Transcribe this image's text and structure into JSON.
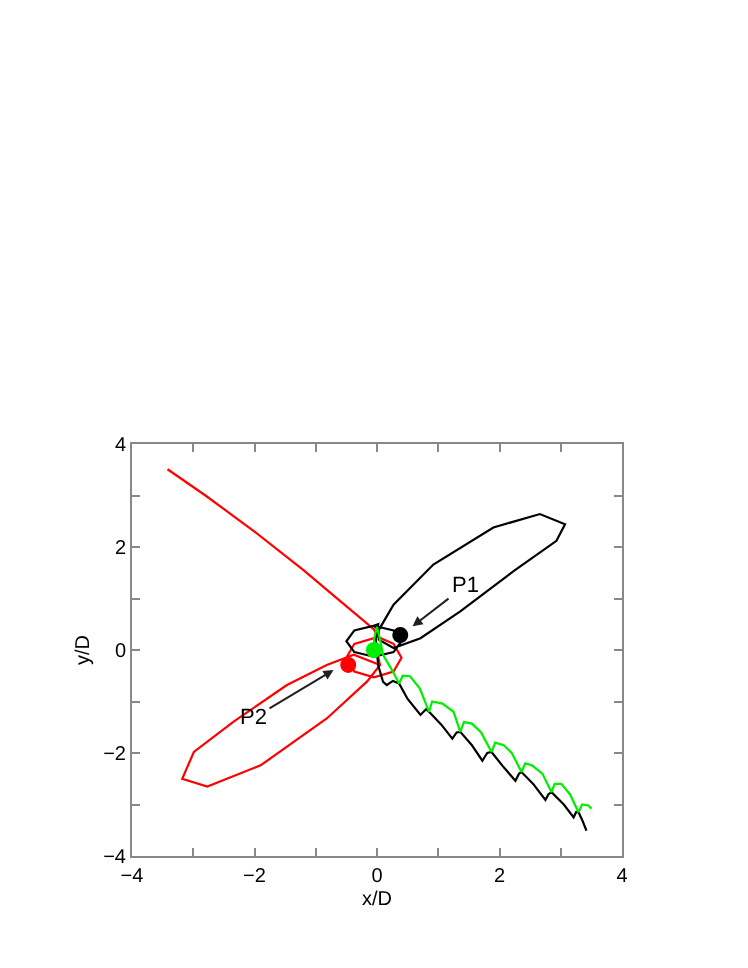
{
  "chart_data": {
    "type": "line",
    "xlabel": "x/D",
    "ylabel": "y/D",
    "xlim": [
      -4,
      4
    ],
    "ylim": [
      -4,
      4
    ],
    "xticks": [
      -4,
      {
        "value": -3,
        "label": null
      },
      -2,
      {
        "value": -1,
        "label": null
      },
      0,
      {
        "value": 1,
        "label": null
      },
      2,
      {
        "value": 3,
        "label": null
      },
      4
    ],
    "yticks": [
      -4,
      {
        "value": -3,
        "label": null
      },
      -2,
      {
        "value": -1,
        "label": null
      },
      0,
      {
        "value": 1,
        "label": null
      },
      2,
      {
        "value": 3,
        "label": null
      },
      4
    ],
    "line_style": "solid",
    "series": [
      {
        "color": "#ff0000",
        "x": [
          -3.42,
          -2.8,
          -2.0,
          -1.2,
          -0.6,
          -0.2,
          -0.05,
          0.02,
          0.27,
          0.4,
          0.27,
          -0.05,
          -0.37,
          -0.5,
          -0.37,
          -0.05,
          0.05,
          -0.16,
          -0.82,
          -1.9,
          -2.77,
          -3.18,
          -2.99,
          -2.34,
          -1.47,
          -0.82,
          -0.38,
          0.05
        ],
        "values": [
          3.51,
          3.0,
          2.3,
          1.55,
          0.95,
          0.55,
          0.4,
          0.25,
          0.12,
          -0.15,
          -0.42,
          -0.53,
          -0.42,
          -0.15,
          0.12,
          0.23,
          -0.29,
          -0.61,
          -1.33,
          -2.24,
          -2.65,
          -2.5,
          -1.98,
          -1.39,
          -0.68,
          -0.29,
          -0.09,
          -0.29
        ]
      },
      {
        "color": "#000000",
        "x": [
          0.03,
          0.27,
          0.92,
          1.9,
          2.66,
          3.07,
          2.93,
          2.23,
          1.36,
          0.71,
          0.27,
          0.03,
          0.03,
          -0.05,
          -0.37,
          -0.5,
          -0.37,
          -0.05,
          0.27,
          0.4,
          0.27,
          -0.05,
          0.02,
          -0.02,
          0.02,
          0.1,
          0.16,
          0.26,
          0.36,
          0.5,
          0.71,
          0.8,
          0.85,
          1.05,
          1.23,
          1.3,
          1.36,
          1.55,
          1.72,
          1.8,
          1.87,
          2.05,
          2.26,
          2.32,
          2.36,
          2.55,
          2.75,
          2.8,
          2.85,
          3.05,
          3.21,
          3.25,
          3.29,
          3.35,
          3.42
        ],
        "values": [
          0.39,
          0.88,
          1.66,
          2.38,
          2.64,
          2.44,
          2.12,
          1.53,
          0.75,
          0.23,
          0.04,
          0.2,
          0.39,
          0.47,
          0.38,
          0.17,
          -0.04,
          -0.13,
          -0.04,
          0.17,
          0.38,
          0.47,
          0.5,
          0.2,
          -0.3,
          -0.62,
          -0.68,
          -0.6,
          -0.65,
          -0.95,
          -1.26,
          -1.15,
          -1.2,
          -1.45,
          -1.72,
          -1.6,
          -1.59,
          -1.85,
          -2.15,
          -2.0,
          -1.98,
          -2.25,
          -2.54,
          -2.4,
          -2.37,
          -2.6,
          -2.91,
          -2.8,
          -2.76,
          -3.0,
          -3.25,
          -3.15,
          -3.15,
          -3.3,
          -3.51
        ]
      },
      {
        "color": "#00ee00",
        "x": [
          0.0,
          -0.05,
          0.0,
          0.05,
          0.1,
          0.25,
          0.36,
          0.42,
          0.54,
          0.7,
          0.85,
          0.9,
          1.07,
          1.25,
          1.36,
          1.42,
          1.55,
          1.7,
          1.87,
          1.93,
          2.07,
          2.2,
          2.36,
          2.42,
          2.53,
          2.7,
          2.85,
          2.9,
          3.01,
          3.15,
          3.29,
          3.35,
          3.45,
          3.5
        ],
        "values": [
          0.0,
          0.2,
          0.45,
          0.2,
          -0.1,
          -0.4,
          -0.65,
          -0.5,
          -0.51,
          -0.75,
          -1.2,
          -1.0,
          -1.04,
          -1.2,
          -1.59,
          -1.4,
          -1.43,
          -1.6,
          -1.98,
          -1.8,
          -1.85,
          -2.0,
          -2.37,
          -2.2,
          -2.24,
          -2.4,
          -2.76,
          -2.6,
          -2.6,
          -2.8,
          -3.15,
          -3.0,
          -3.02,
          -3.08
        ]
      },
      {
        "type": "scatter",
        "marker": "circle",
        "color": "#000000",
        "x": [
          0.38
        ],
        "values": [
          0.29
        ]
      },
      {
        "type": "scatter",
        "marker": "circle",
        "color": "#ff0000",
        "x": [
          -0.47
        ],
        "values": [
          -0.29
        ]
      },
      {
        "type": "scatter",
        "marker": "circle",
        "color": "#00ee00",
        "x": [
          -0.05
        ],
        "values": [
          0.0
        ]
      }
    ],
    "annotations": [
      {
        "text": "P1",
        "x": 0.58,
        "y": 0.46
      },
      {
        "text": "P2",
        "x": -0.71,
        "y": -0.39
      }
    ]
  }
}
